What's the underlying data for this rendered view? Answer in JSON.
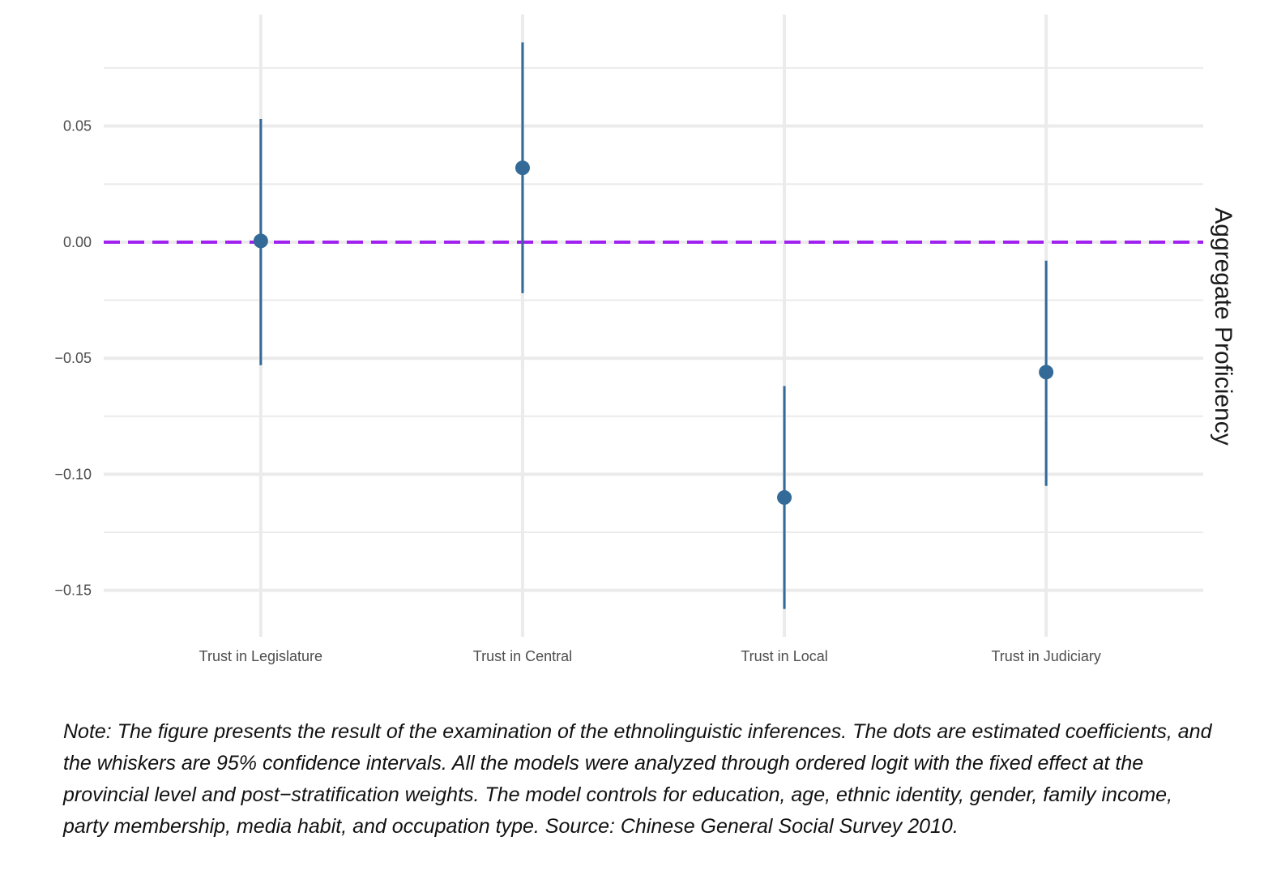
{
  "chart_data": {
    "type": "scatter",
    "subtype": "point-estimate with 95% confidence intervals",
    "categories": [
      "Trust in Legislature",
      "Trust in Central",
      "Trust in Local",
      "Trust in Judiciary"
    ],
    "series": [
      {
        "estimate": [
          0.0005,
          0.032,
          -0.11,
          -0.056
        ],
        "ci_low": [
          -0.053,
          -0.022,
          -0.158,
          -0.105
        ],
        "ci_high": [
          0.053,
          0.086,
          -0.062,
          -0.008
        ]
      }
    ],
    "reference_line": {
      "y": 0,
      "style": "dashed",
      "color": "#a020f0"
    },
    "ylim": [
      -0.17,
      0.098
    ],
    "y_ticks": [
      0.05,
      0.0,
      -0.05,
      -0.1,
      -0.15
    ],
    "y_tick_labels": [
      "0.05",
      "0.00",
      "−0.05",
      "−0.10",
      "−0.15"
    ],
    "strip_label": "Aggregate Proficiency",
    "grid": true,
    "colors": {
      "point": "#336a98",
      "grid": "#ebebeb",
      "reference": "#a020f0"
    }
  },
  "note": "Note: The figure presents the result of the examination of the ethnolinguistic inferences. The dots are estimated coefficients, and the whiskers are 95% confidence intervals. All the models were analyzed through ordered logit with the fixed effect at the provincial level and post−stratification weights. The model controls for education, age, ethnic identity, gender, family income, party membership, media habit, and occupation type. Source: Chinese General Social Survey 2010."
}
